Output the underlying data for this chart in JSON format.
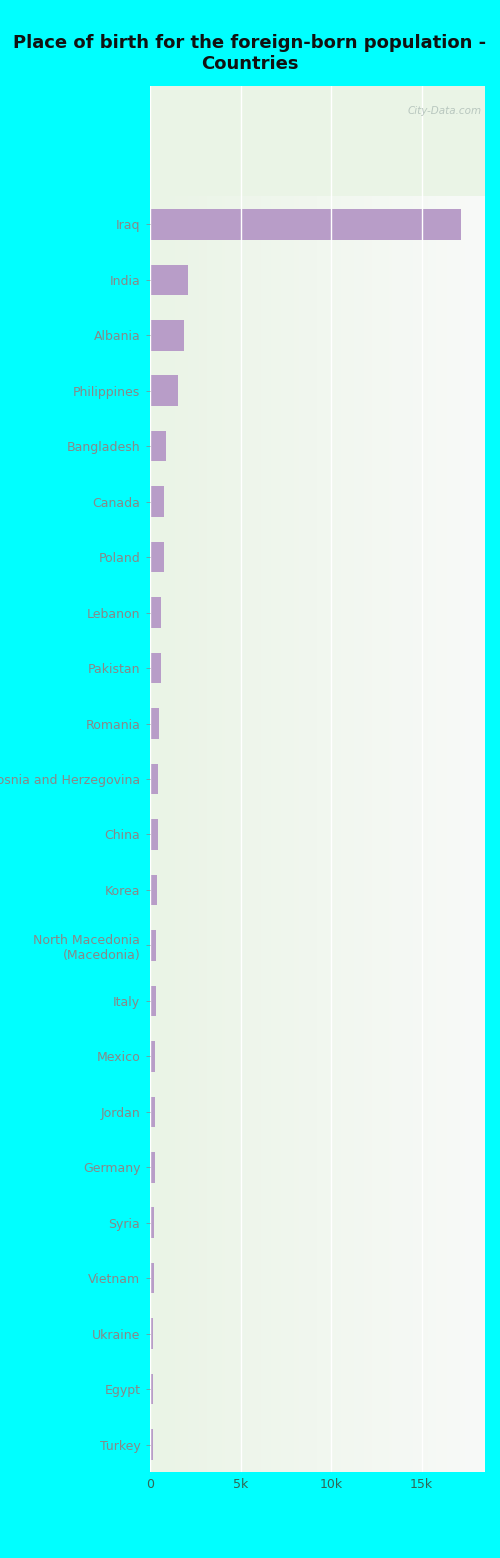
{
  "title": "Place of birth for the foreign-born population -\nCountries",
  "categories": [
    "Iraq",
    "India",
    "Albania",
    "Philippines",
    "Bangladesh",
    "Canada",
    "Poland",
    "Lebanon",
    "Pakistan",
    "Romania",
    "Bosnia and Herzegovina",
    "China",
    "Korea",
    "North Macedonia\n(Macedonia)",
    "Italy",
    "Mexico",
    "Jordan",
    "Germany",
    "Syria",
    "Vietnam",
    "Ukraine",
    "Egypt",
    "Turkey"
  ],
  "values": [
    17200,
    2100,
    1900,
    1550,
    900,
    800,
    750,
    620,
    580,
    520,
    450,
    420,
    380,
    340,
    310,
    290,
    270,
    250,
    230,
    210,
    190,
    170,
    150
  ],
  "bar_color": "#b89dc8",
  "background_color": "#00ffff",
  "plot_bg_left": "#eaf4e6",
  "plot_bg_right": "#f8faf8",
  "title_color": "#111111",
  "label_color": "#336655",
  "tick_color": "#336655",
  "xlim": [
    0,
    18500
  ],
  "xticks": [
    0,
    5000,
    10000,
    15000
  ],
  "xtick_labels": [
    "0",
    "5k",
    "10k",
    "15k"
  ],
  "title_fontsize": 13,
  "label_fontsize": 9,
  "tick_fontsize": 9,
  "watermark": "City-Data.com",
  "bar_height": 0.55
}
